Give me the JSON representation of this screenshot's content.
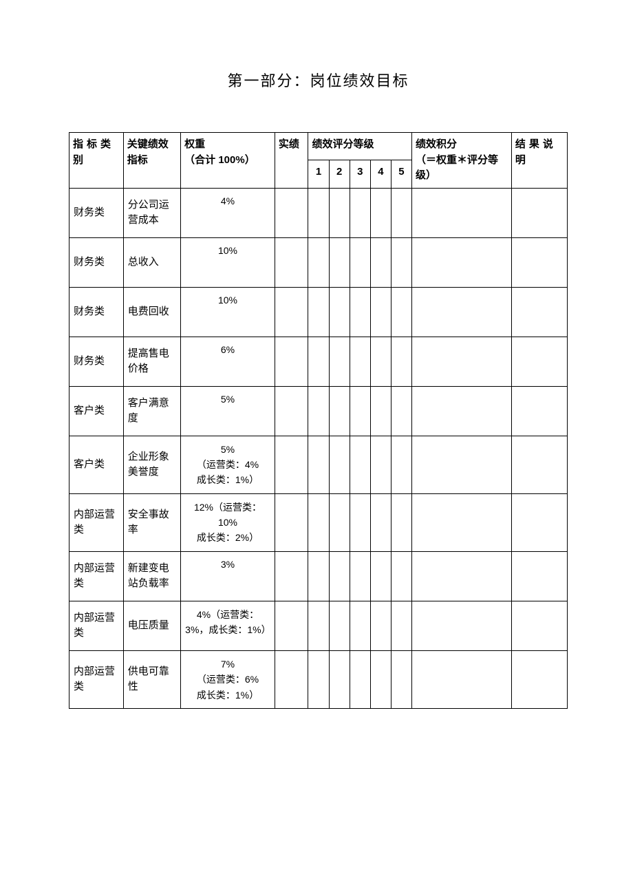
{
  "title": "第一部分：岗位绩效目标",
  "table": {
    "columns": {
      "category": "指标类别",
      "indicator": "关键绩效指标",
      "weight_line1": "权重",
      "weight_line2": "（合计 100%）",
      "actual": "实绩",
      "rating_header": "绩效评分等级",
      "rating_levels": [
        "1",
        "2",
        "3",
        "4",
        "5"
      ],
      "score_line1": "绩效积分",
      "score_line2": "（＝权重＊评分等级）",
      "result": "结果说明"
    },
    "rows": [
      {
        "category": "财务类",
        "indicator": "分公司运营成本",
        "weight": "4%",
        "weight_multi": false
      },
      {
        "category": "财务类",
        "indicator": "总收入",
        "weight": "10%",
        "weight_multi": false
      },
      {
        "category": "财务类",
        "indicator": "电费回收",
        "weight": "10%",
        "weight_multi": false
      },
      {
        "category": "财务类",
        "indicator": "提高售电价格",
        "weight": "6%",
        "weight_multi": false
      },
      {
        "category": "客户类",
        "indicator": "客户满意度",
        "weight": "5%",
        "weight_multi": false
      },
      {
        "category": "客户类",
        "indicator": "企业形象美誉度",
        "weight": "5%\n（运营类：4%\n成长类：1%）",
        "weight_multi": true
      },
      {
        "category": "内部运营类",
        "indicator": "安全事故率",
        "weight": "12%（运营类：10%\n成长类：2%）",
        "weight_multi": true
      },
      {
        "category": "内部运营类",
        "indicator": "新建变电站负载率",
        "weight": "3%",
        "weight_multi": false
      },
      {
        "category": "内部运营类",
        "indicator": "电压质量",
        "weight": "4%（运营类：3%，成长类：1%）",
        "weight_multi": true
      },
      {
        "category": "内部运营类",
        "indicator": "供电可靠性",
        "weight": "7%\n（运营类：6%\n成长类：1%）",
        "weight_multi": true
      }
    ],
    "border_color": "#000000",
    "background_color": "#ffffff",
    "text_color": "#000000",
    "title_fontsize": 22,
    "body_fontsize": 15
  }
}
